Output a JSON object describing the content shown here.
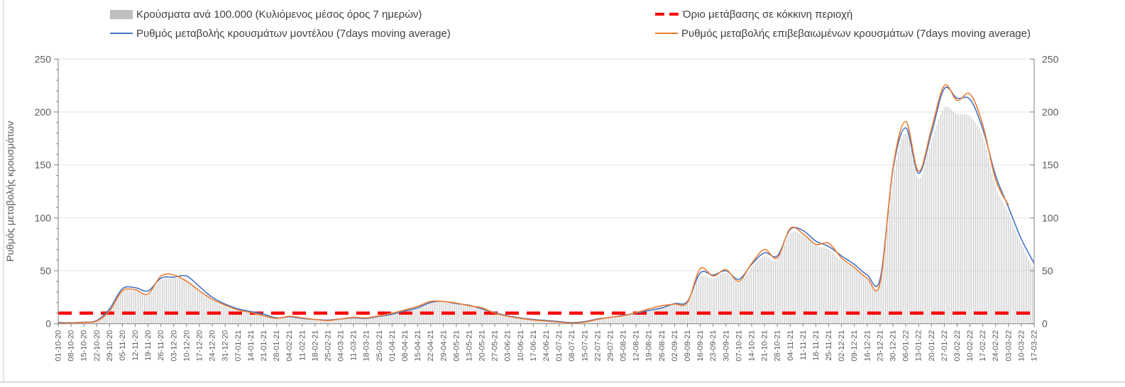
{
  "legend": {
    "bars": {
      "label": "Κρούσματα ανά 100.000 (Κυλιόμενος μέσος όρος 7 ημερών)",
      "color": "#bfbfbf"
    },
    "model": {
      "label": "Ρυθμός μεταβολής κρουσμάτων μοντέλου (7days moving average)",
      "color": "#4472c4"
    },
    "threshold": {
      "label": "Όριο μετάβασης σε κόκκινη περιοχή",
      "color": "#ff0000"
    },
    "confirmed": {
      "label": "Ρυθμός μεταβολής επιβεβαιωμένων κρουσμάτων (7days moving average)",
      "color": "#ed7d31"
    }
  },
  "y_axis": {
    "title": "Ρυθμός μεταβολής κρουσμάτων",
    "major_ticks": [
      0,
      50,
      100,
      150,
      200,
      250
    ],
    "minor_step": 10,
    "max": 250
  },
  "chart_data": {
    "type": "bar+line",
    "title": "",
    "xlabel": "",
    "ylabel": "Ρυθμός μεταβολής κρουσμάτων",
    "ylim": [
      0,
      250
    ],
    "grid": true,
    "legend_position": "top",
    "threshold_value": 10,
    "x_weekly_labels": [
      "01-10-20",
      "08-10-20",
      "15-10-20",
      "22-10-20",
      "29-10-20",
      "05-11-20",
      "12-11-20",
      "19-11-20",
      "26-11-20",
      "03-12-20",
      "10-12-20",
      "17-12-20",
      "24-12-20",
      "31-12-20",
      "07-01-21",
      "14-01-21",
      "21-01-21",
      "28-01-21",
      "04-02-21",
      "11-02-21",
      "18-02-21",
      "25-02-21",
      "04-03-21",
      "11-03-21",
      "18-03-21",
      "25-03-21",
      "01-04-21",
      "08-04-21",
      "15-04-21",
      "22-04-21",
      "29-04-21",
      "06-05-21",
      "13-05-21",
      "20-05-21",
      "27-05-21",
      "03-06-21",
      "10-06-21",
      "17-06-21",
      "24-06-21",
      "01-07-21",
      "08-07-21",
      "15-07-21",
      "22-07-21",
      "29-07-21",
      "05-08-21",
      "12-08-21",
      "19-08-21",
      "26-08-21",
      "02-09-21",
      "09-09-21",
      "16-09-21",
      "23-09-21",
      "30-09-21",
      "07-10-21",
      "14-10-21",
      "21-10-21",
      "28-10-21",
      "04-11-21",
      "11-11-21",
      "18-11-21",
      "25-11-21",
      "02-12-21",
      "09-12-21",
      "16-12-21",
      "23-12-21",
      "30-12-21",
      "06-01-22",
      "13-01-22",
      "20-01-22",
      "27-01-22",
      "03-02-22",
      "10-02-22",
      "17-02-22",
      "24-02-22",
      "03-03-22",
      "10-03-22",
      "17-03-22"
    ],
    "series": [
      {
        "name": "Κρούσματα ανά 100.000 (Κυλιόμενος μέσος όρος 7 ημερών)",
        "type": "bar",
        "color": "#c7c7c7",
        "values": [
          0.5,
          0.7,
          1,
          2,
          11,
          30,
          31,
          27,
          41,
          43,
          42,
          32,
          22,
          16,
          12,
          10,
          8,
          5,
          5.5,
          4.5,
          3.5,
          3,
          4,
          5,
          4.5,
          6.5,
          8.5,
          11.5,
          14.5,
          19,
          20,
          18.5,
          16.5,
          13.5,
          9.5,
          7,
          5,
          3.5,
          2.5,
          1.5,
          0.7,
          1.5,
          4,
          5.5,
          7,
          9.5,
          12,
          14.5,
          18,
          20,
          44,
          43,
          48,
          39,
          53,
          64,
          60,
          85,
          84,
          74,
          70,
          60,
          52,
          43,
          37,
          135,
          180,
          137,
          172,
          204,
          198,
          196,
          176,
          130,
          104,
          76,
          52
        ]
      },
      {
        "name": "Ρυθμός μεταβολής κρουσμάτων μοντέλου (7days moving average)",
        "type": "line",
        "color": "#4472c4",
        "values": [
          1,
          1,
          1.5,
          3,
          14,
          33,
          34,
          31,
          43,
          44,
          45,
          35,
          25,
          18.5,
          14,
          11.5,
          9,
          5.5,
          6.5,
          5,
          4,
          3.5,
          4.5,
          5.5,
          5,
          7,
          9,
          12,
          15,
          20,
          21,
          19,
          17.5,
          14,
          10.5,
          7.5,
          5.5,
          4,
          3,
          2,
          1,
          2,
          4.5,
          6,
          8,
          10,
          12.5,
          15,
          19,
          21,
          48,
          46,
          50,
          42,
          56,
          67,
          64,
          89,
          88,
          78,
          73,
          64,
          56,
          46,
          42,
          145,
          185,
          142,
          180,
          222,
          213,
          212,
          184,
          140,
          110,
          80,
          57
        ]
      },
      {
        "name": "Ρυθμός μεταβολής επιβεβαιωμένων κρουσμάτων (7days moving average)",
        "type": "line",
        "color": "#ed7d31",
        "values": [
          0.5,
          0.8,
          1.2,
          2.5,
          12,
          31,
          32,
          28,
          45,
          46,
          40,
          31,
          23,
          17.5,
          13,
          10.5,
          7.5,
          5,
          7,
          5.5,
          4,
          3,
          4.5,
          6,
          5.5,
          7.5,
          10,
          13,
          16.5,
          21,
          21,
          19.5,
          17,
          15,
          10,
          7,
          5,
          3.5,
          2.5,
          1.5,
          0.5,
          1.5,
          4,
          6,
          7.5,
          10.5,
          14,
          17,
          18.5,
          20,
          52,
          45,
          51,
          40,
          57,
          70,
          62,
          90,
          85,
          75,
          76,
          62,
          53,
          43,
          38,
          147,
          191,
          144,
          184,
          225,
          211,
          217,
          188,
          136,
          112,
          null,
          null
        ]
      },
      {
        "name": "Όριο μετάβασης σε κόκκινη περιοχή",
        "type": "threshold",
        "color": "#ff0000",
        "value": 10
      }
    ]
  }
}
